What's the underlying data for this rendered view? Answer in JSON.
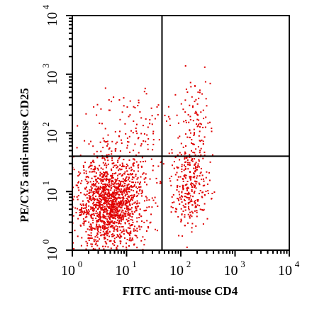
{
  "chart_data": {
    "type": "scatter",
    "xlabel": "FITC anti-mouse CD4",
    "ylabel": "PE/CY5 anti-mouse CD25",
    "x_scale": "log",
    "y_scale": "log",
    "xlim": [
      1,
      10000
    ],
    "ylim": [
      1,
      10000
    ],
    "x_ticks": [
      {
        "base": "10",
        "exp": "0",
        "value": 1
      },
      {
        "base": "10",
        "exp": "1",
        "value": 10
      },
      {
        "base": "10",
        "exp": "2",
        "value": 100
      },
      {
        "base": "10",
        "exp": "3",
        "value": 1000
      },
      {
        "base": "10",
        "exp": "4",
        "value": 10000
      }
    ],
    "y_ticks": [
      {
        "base": "10",
        "exp": "0",
        "value": 1
      },
      {
        "base": "10",
        "exp": "1",
        "value": 10
      },
      {
        "base": "10",
        "exp": "2",
        "value": 100
      },
      {
        "base": "10",
        "exp": "3",
        "value": 1000
      },
      {
        "base": "10",
        "exp": "4",
        "value": 10000
      }
    ],
    "quadrant_gates": {
      "x": 45,
      "y": 40
    },
    "point_color": "#e00000",
    "grid": false,
    "clusters": [
      {
        "count": 1500,
        "x_center": 5,
        "x_sd_log": 0.32,
        "y_center": 6,
        "y_sd_log": 0.38
      },
      {
        "count": 280,
        "x_center": 150,
        "x_sd_log": 0.18,
        "y_center": 12,
        "y_sd_log": 0.35
      },
      {
        "count": 110,
        "x_center": 180,
        "x_sd_log": 0.15,
        "y_center": 120,
        "y_sd_log": 0.45
      },
      {
        "count": 140,
        "x_center": 12,
        "x_sd_log": 0.42,
        "y_center": 110,
        "y_sd_log": 0.45
      }
    ]
  }
}
